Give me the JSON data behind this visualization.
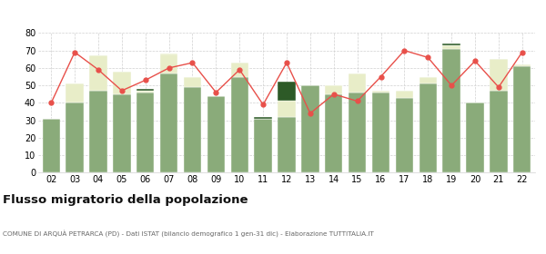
{
  "years": [
    "02",
    "03",
    "04",
    "05",
    "06",
    "07",
    "08",
    "09",
    "10",
    "11",
    "12",
    "13",
    "14",
    "15",
    "16",
    "17",
    "18",
    "19",
    "20",
    "21",
    "22"
  ],
  "iscritti_comuni": [
    31,
    40,
    47,
    45,
    46,
    57,
    49,
    44,
    55,
    31,
    32,
    50,
    45,
    46,
    46,
    43,
    51,
    71,
    40,
    47,
    61
  ],
  "iscritti_estero": [
    0,
    11,
    20,
    13,
    1,
    11,
    6,
    0,
    8,
    0,
    9,
    0,
    5,
    11,
    1,
    4,
    4,
    2,
    0,
    18,
    1
  ],
  "iscritti_altri": [
    0,
    0,
    0,
    0,
    1,
    0,
    0,
    0,
    0,
    1,
    11,
    0,
    0,
    0,
    0,
    0,
    0,
    1,
    0,
    0,
    0
  ],
  "cancellati": [
    40,
    69,
    59,
    47,
    53,
    60,
    63,
    46,
    59,
    39,
    63,
    34,
    45,
    41,
    55,
    70,
    66,
    50,
    64,
    49,
    69
  ],
  "color_comuni": "#8aab7a",
  "color_estero": "#e8edc8",
  "color_altri": "#2d5a27",
  "color_cancellati": "#e8504a",
  "bar_edge_color": "#ffffff",
  "grid_color": "#d0d0d0",
  "title": "Flusso migratorio della popolazione",
  "subtitle": "COMUNE DI ARQUÀ PETRARCA (PD) - Dati ISTAT (bilancio demografico 1 gen-31 dic) - Elaborazione TUTTITALIA.IT",
  "ylim": [
    0,
    80
  ],
  "yticks": [
    0,
    10,
    20,
    30,
    40,
    50,
    60,
    70,
    80
  ]
}
